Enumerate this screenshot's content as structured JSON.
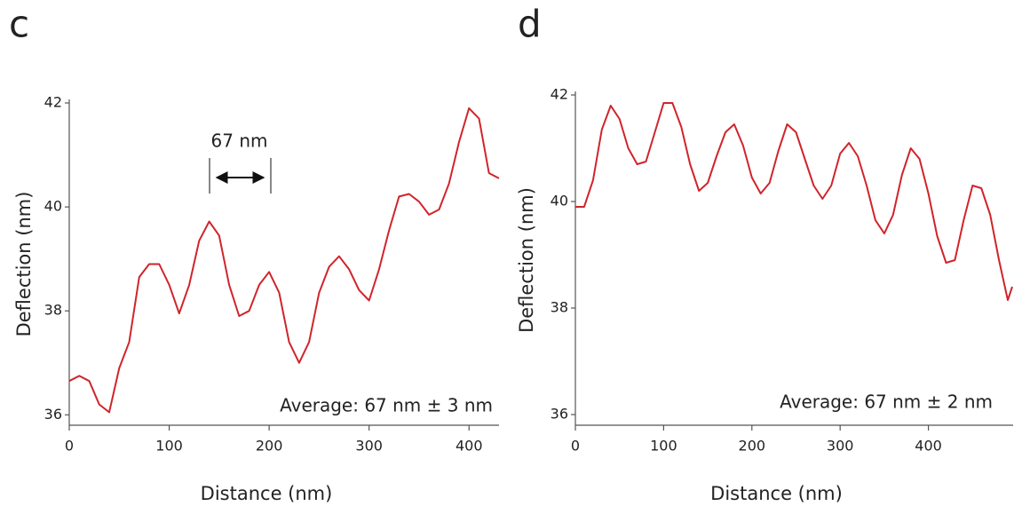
{
  "chart_data": [
    {
      "type": "line",
      "label": "c",
      "xlabel": "Distance (nm)",
      "ylabel": "Deflection (nm)",
      "color": "#d0242b",
      "x": [
        0,
        10,
        20,
        30,
        40,
        50,
        60,
        70,
        80,
        90,
        100,
        110,
        120,
        130,
        140,
        150,
        160,
        170,
        180,
        190,
        200,
        210,
        220,
        230,
        240,
        250,
        260,
        270,
        280,
        290,
        300,
        310,
        320,
        330,
        340,
        350,
        360,
        370,
        380,
        390,
        400,
        410,
        420,
        430
      ],
      "values": [
        36.65,
        36.75,
        36.65,
        36.2,
        36.05,
        36.9,
        37.4,
        38.65,
        38.9,
        38.9,
        38.5,
        37.95,
        38.5,
        39.35,
        39.72,
        39.45,
        38.5,
        37.9,
        38.0,
        38.5,
        38.75,
        38.35,
        37.4,
        37.0,
        37.4,
        38.35,
        38.85,
        39.05,
        38.8,
        38.4,
        38.2,
        38.8,
        39.55,
        40.2,
        40.25,
        40.1,
        39.85,
        39.95,
        40.45,
        41.25,
        41.9,
        41.7,
        40.65,
        40.55
      ],
      "xlim": [
        0,
        430
      ],
      "ylim": [
        35.8,
        42
      ],
      "xticks": [
        0,
        100,
        200,
        300,
        400
      ],
      "yticks": [
        36,
        38,
        40,
        42
      ],
      "annotations": [
        "67 nm",
        "Average: 67 nm ± 3 nm"
      ]
    },
    {
      "type": "line",
      "label": "d",
      "xlabel": "Distance (nm)",
      "ylabel": "Deflection (nm)",
      "color": "#d0242b",
      "x": [
        0,
        10,
        20,
        30,
        40,
        50,
        60,
        70,
        80,
        90,
        100,
        110,
        120,
        130,
        140,
        150,
        160,
        170,
        180,
        190,
        200,
        210,
        220,
        230,
        240,
        250,
        260,
        270,
        280,
        290,
        300,
        310,
        320,
        330,
        340,
        350,
        360,
        370,
        380,
        390,
        400,
        410,
        420,
        430,
        440,
        450,
        460,
        470,
        480,
        490,
        495
      ],
      "values": [
        39.9,
        39.9,
        40.4,
        41.35,
        41.8,
        41.55,
        41.0,
        40.7,
        40.75,
        41.3,
        41.85,
        41.85,
        41.4,
        40.7,
        40.2,
        40.35,
        40.85,
        41.3,
        41.45,
        41.05,
        40.45,
        40.15,
        40.35,
        40.95,
        41.45,
        41.3,
        40.8,
        40.3,
        40.05,
        40.3,
        40.9,
        41.1,
        40.85,
        40.3,
        39.65,
        39.4,
        39.75,
        40.5,
        41.0,
        40.8,
        40.15,
        39.35,
        38.85,
        38.9,
        39.65,
        40.3,
        40.25,
        39.75,
        38.9,
        38.15,
        38.4
      ],
      "xlim": [
        0,
        496
      ],
      "ylim": [
        35.8,
        42
      ],
      "xticks": [
        0,
        100,
        200,
        300,
        400
      ],
      "yticks": [
        36,
        38,
        40,
        42
      ],
      "annotations": [
        "Average: 67 nm ± 2 nm"
      ]
    }
  ]
}
